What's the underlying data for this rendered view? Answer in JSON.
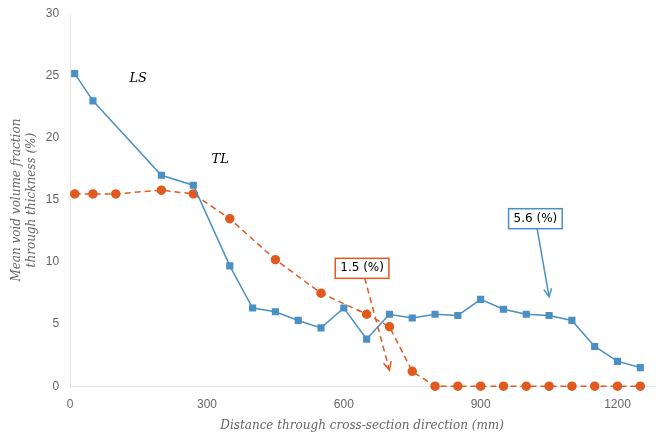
{
  "chart_data": {
    "type": "line",
    "xlabel": "Distance through cross-section direction (mm)",
    "ylabel": "Mean void volume fraction\nthrough thickness (%)",
    "xlim": [
      0,
      1280
    ],
    "ylim": [
      0,
      30
    ],
    "xticks": [
      0,
      300,
      600,
      900,
      1200
    ],
    "yticks": [
      0,
      5,
      10,
      15,
      20,
      25,
      30
    ],
    "grid": false,
    "series": [
      {
        "name": "LS",
        "color": "#4a90c4",
        "marker": "square",
        "line_style": "solid",
        "x": [
          10,
          50,
          200,
          270,
          350,
          400,
          450,
          500,
          550,
          600,
          650,
          700,
          750,
          800,
          850,
          900,
          950,
          1000,
          1050,
          1100,
          1150,
          1200,
          1250
        ],
        "values": [
          25.2,
          23.0,
          17.0,
          16.2,
          9.7,
          6.3,
          6.0,
          5.3,
          4.7,
          6.3,
          3.8,
          5.8,
          5.5,
          5.8,
          5.7,
          7.0,
          6.2,
          5.8,
          5.7,
          5.3,
          3.2,
          2.0,
          1.5
        ]
      },
      {
        "name": "TL",
        "color": "#e05a20",
        "marker": "circle",
        "line_style": "dashed",
        "x": [
          10,
          50,
          100,
          200,
          270,
          350,
          450,
          550,
          650,
          700,
          750,
          800,
          850,
          900,
          950,
          1000,
          1050,
          1100,
          1150,
          1200,
          1250
        ],
        "values": [
          15.5,
          15.5,
          15.5,
          15.8,
          15.5,
          13.5,
          10.2,
          7.5,
          5.8,
          4.8,
          1.2,
          0.0,
          0.0,
          0.0,
          0.0,
          0.0,
          0.0,
          0.0,
          0.0,
          0.0,
          0.0
        ]
      }
    ],
    "annotations": [
      {
        "text": "LS",
        "x": 130,
        "y": 24.5
      },
      {
        "text": "TL",
        "x": 310,
        "y": 18.0
      },
      {
        "text": "1.5 (%)",
        "x": 640,
        "y": 9.5,
        "arrow_x": 700,
        "arrow_y": 1.3,
        "color": "#e05a20",
        "line_style": "dashed"
      },
      {
        "text": "5.6 (%)",
        "x": 1020,
        "y": 13.5,
        "arrow_x": 1050,
        "arrow_y": 7.2,
        "color": "#4a90c4",
        "line_style": "solid"
      }
    ]
  }
}
